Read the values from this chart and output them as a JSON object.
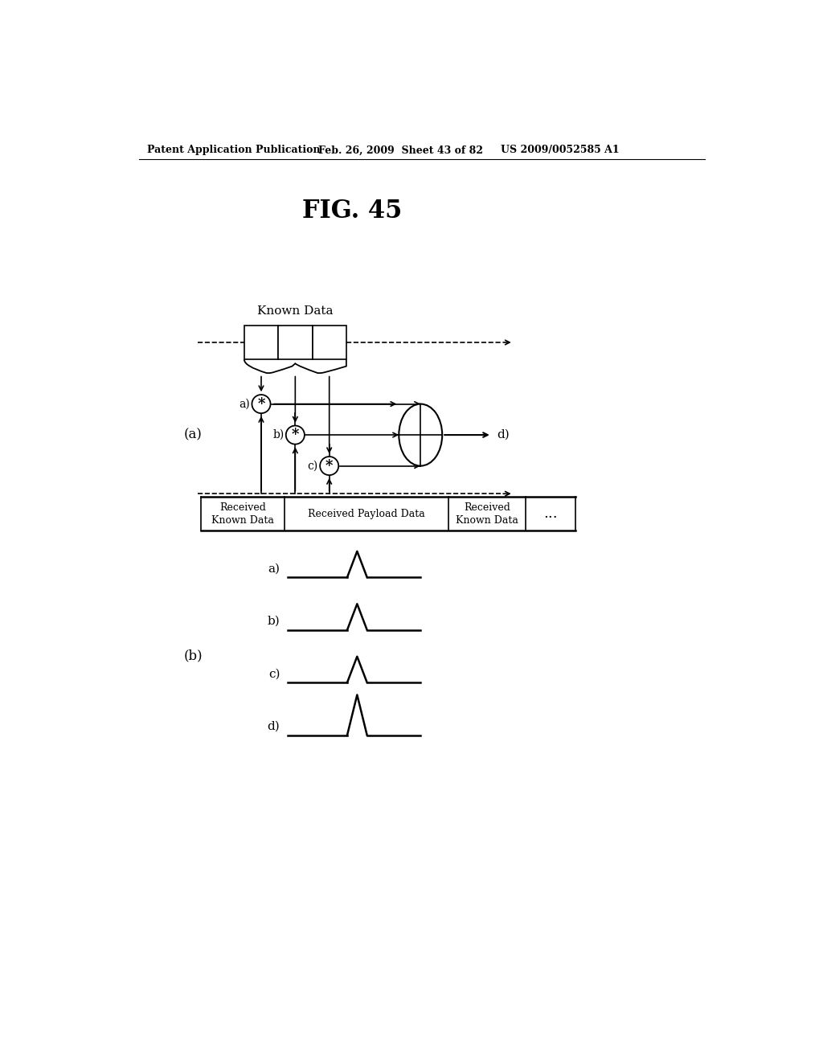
{
  "title": "FIG. 45",
  "header_left": "Patent Application Publication",
  "header_mid": "Feb. 26, 2009  Sheet 43 of 82",
  "header_right": "US 2009/0052585 A1",
  "bg_color": "#ffffff",
  "line_color": "#000000",
  "label_a": "(a)",
  "label_b": "(b)",
  "known_data_label": "Known Data",
  "received_known_data": "Received\nKnown Data",
  "received_payload": "Received Payload Data",
  "received_known_data2": "Received\nKnown Data",
  "dots": "...",
  "signal_labels": [
    "a)",
    "b)",
    "c)",
    "d)"
  ],
  "output_label": "d)"
}
